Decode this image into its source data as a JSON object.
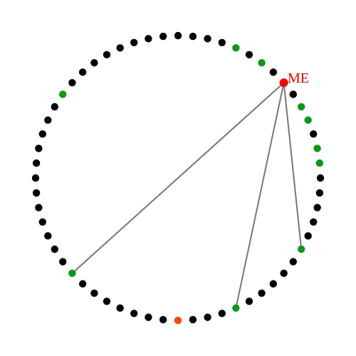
{
  "diagram": {
    "node_count": 60,
    "me": {
      "label": "ME",
      "index": 8
    },
    "colors": {
      "background": "#ffffff",
      "default_node": "#000000",
      "highlight_node": "#0a9a16",
      "me_node": "#ff0000",
      "me_label": "#dd0000",
      "special_node": "#ff4500",
      "link": "#777777"
    },
    "highlighted_nodes": [
      4,
      6,
      10,
      11,
      13,
      14,
      20,
      26,
      38,
      51
    ],
    "special_nodes": [
      30
    ],
    "links": [
      {
        "from": 8,
        "to": 20
      },
      {
        "from": 8,
        "to": 26
      },
      {
        "from": 8,
        "to": 38
      }
    ]
  }
}
